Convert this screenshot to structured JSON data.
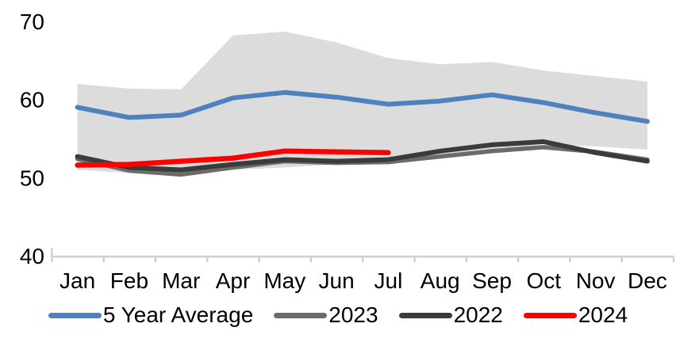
{
  "chart_data": {
    "type": "line",
    "title": "",
    "xlabel": "",
    "ylabel": "",
    "x_categories": [
      "Jan",
      "Feb",
      "Mar",
      "Apr",
      "May",
      "Jun",
      "Jul",
      "Aug",
      "Sep",
      "Oct",
      "Nov",
      "Dec"
    ],
    "yticks": [
      40,
      50,
      60,
      70
    ],
    "ylim": [
      40,
      70
    ],
    "grid": false,
    "legend_position": "bottom",
    "axis_color": "#cfcfcf",
    "band": {
      "name": "5-year-range",
      "color": "#dcdcdc",
      "upper": [
        62.0,
        61.4,
        61.3,
        68.2,
        68.7,
        67.3,
        65.3,
        64.5,
        64.8,
        63.7,
        63.0,
        62.3
      ],
      "lower": [
        51.0,
        50.6,
        50.4,
        51.0,
        51.3,
        51.7,
        52.0,
        52.5,
        53.4,
        54.3,
        54.0,
        53.6
      ]
    },
    "series": [
      {
        "name": "5 Year Average",
        "color": "#4e81bd",
        "width": 6,
        "values": [
          59.0,
          57.7,
          58.0,
          60.2,
          60.9,
          60.3,
          59.4,
          59.8,
          60.6,
          59.6,
          58.3,
          57.2
        ]
      },
      {
        "name": "2023",
        "color": "#6b6b6b",
        "width": 5.5,
        "values": [
          52.4,
          50.9,
          50.4,
          51.3,
          52.1,
          51.9,
          52.0,
          52.7,
          53.4,
          53.9,
          53.3,
          52.3
        ]
      },
      {
        "name": "2022",
        "color": "#3b3b3b",
        "width": 6,
        "values": [
          52.7,
          51.3,
          51.0,
          51.7,
          52.3,
          52.1,
          52.3,
          53.4,
          54.2,
          54.6,
          53.2,
          52.1
        ]
      },
      {
        "name": "2024",
        "color": "#ff0000",
        "width": 6.5,
        "values": [
          51.6,
          51.7,
          52.1,
          52.5,
          53.4,
          53.3,
          53.2,
          null,
          null,
          null,
          null,
          null
        ]
      }
    ]
  }
}
